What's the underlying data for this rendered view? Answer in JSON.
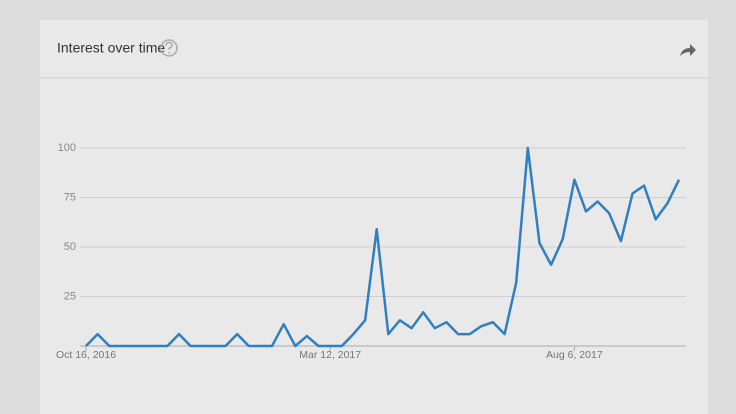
{
  "chart_data": {
    "type": "line",
    "title": "Interest over time",
    "categories": [
      "Oct 16, 2016",
      null,
      null,
      null,
      null,
      null,
      null,
      null,
      null,
      null,
      null,
      null,
      null,
      null,
      null,
      null,
      null,
      null,
      null,
      null,
      null,
      "Mar 12, 2017",
      null,
      null,
      null,
      null,
      null,
      null,
      null,
      null,
      null,
      null,
      null,
      null,
      null,
      null,
      null,
      null,
      null,
      null,
      null,
      null,
      "Aug 6, 2017",
      null,
      null,
      null,
      null,
      null,
      null,
      null,
      null,
      null
    ],
    "values": [
      0,
      6,
      0,
      0,
      0,
      0,
      0,
      0,
      6,
      0,
      0,
      0,
      0,
      6,
      0,
      0,
      0,
      11,
      0,
      5,
      0,
      0,
      0,
      6,
      13,
      59,
      6,
      13,
      9,
      17,
      9,
      12,
      6,
      6,
      10,
      12,
      6,
      32,
      100,
      52,
      41,
      54,
      84,
      68,
      73,
      67,
      53,
      77,
      81,
      64,
      72,
      84
    ],
    "color": "#2f7fc1",
    "ylim": [
      0,
      100
    ],
    "yticks": [
      25,
      50,
      75,
      100
    ],
    "grid": true
  }
}
